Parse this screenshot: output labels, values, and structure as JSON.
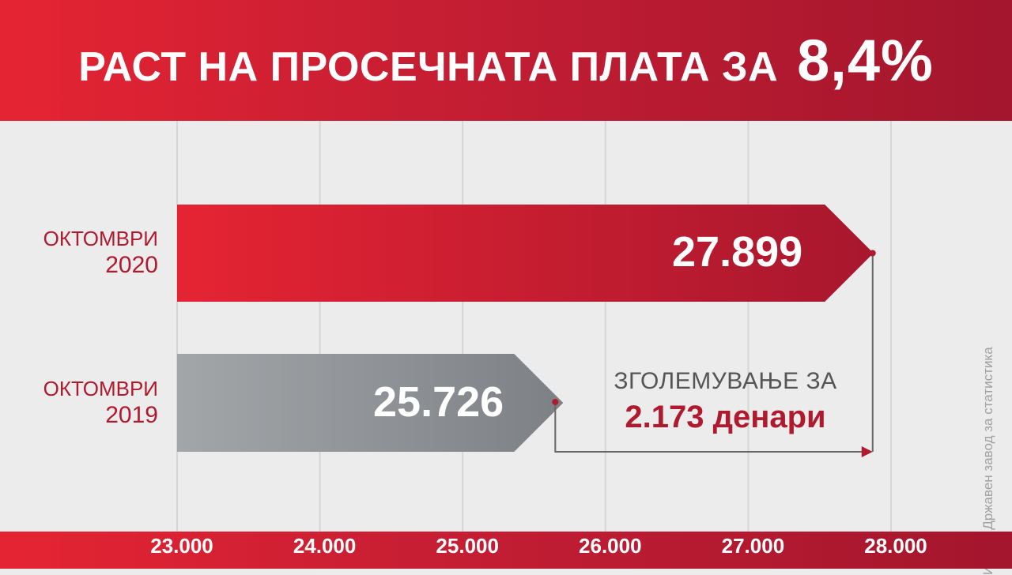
{
  "header": {
    "title_main": "РАСТ НА ПРОСЕЧНАТА ПЛАТА ЗА",
    "title_highlight": "8,4%"
  },
  "chart_data": {
    "type": "bar",
    "orientation": "horizontal",
    "categories": [
      {
        "line1": "ОКТОМВРИ",
        "line2": "2020"
      },
      {
        "line1": "ОКТОМВРИ",
        "line2": "2019"
      }
    ],
    "values": [
      27899,
      25726
    ],
    "value_labels": [
      "27.899",
      "25.726"
    ],
    "bar_colors": [
      "#c41d30",
      "#8f9296"
    ],
    "xlim": [
      23000,
      28000
    ],
    "x_ticks": [
      23000,
      24000,
      25000,
      26000,
      27000,
      28000
    ],
    "x_tick_labels": [
      "23.000",
      "24.000",
      "25.000",
      "26.000",
      "27.000",
      "28.000"
    ],
    "grid": true,
    "annotation": {
      "line1": "ЗГОЛЕМУВАЊЕ ЗА",
      "line2": "2.173 денари",
      "from": 25726,
      "to": 27899
    },
    "source": "Извор: Државен завод за статистика"
  }
}
